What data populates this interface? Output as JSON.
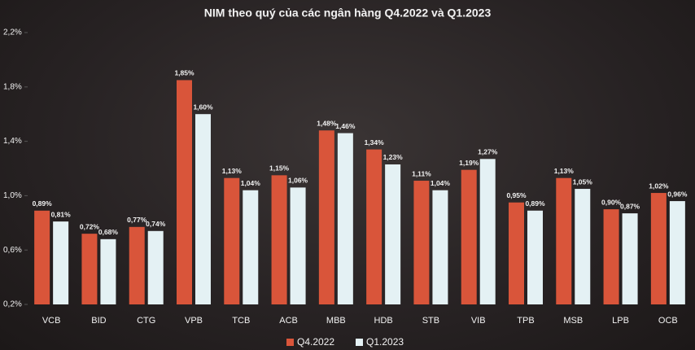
{
  "chart_data": {
    "type": "bar",
    "title": "NIM theo quý của các ngân hàng Q4.2022 và Q1.2023",
    "categories": [
      "VCB",
      "BID",
      "CTG",
      "VPB",
      "TCB",
      "ACB",
      "MBB",
      "HDB",
      "STB",
      "VIB",
      "TPB",
      "MSB",
      "LPB",
      "OCB"
    ],
    "series": [
      {
        "name": "Q4.2022",
        "color": "#d9553a",
        "values": [
          0.89,
          0.72,
          0.77,
          1.85,
          1.13,
          1.15,
          1.48,
          1.34,
          1.11,
          1.19,
          0.95,
          1.13,
          0.9,
          1.02
        ],
        "value_labels": [
          "0,89%",
          "0,72%",
          "0,77%",
          "1,85%",
          "1,13%",
          "1,15%",
          "1,48%",
          "1,34%",
          "1,11%",
          "1,19%",
          "0,95%",
          "1,13%",
          "0,90%",
          "1,02%"
        ]
      },
      {
        "name": "Q1.2023",
        "color": "#e4f1f4",
        "values": [
          0.81,
          0.68,
          0.74,
          1.6,
          1.04,
          1.06,
          1.46,
          1.23,
          1.04,
          1.27,
          0.89,
          1.05,
          0.87,
          0.96
        ],
        "value_labels": [
          "0,81%",
          "0,68%",
          "0,74%",
          "1,60%",
          "1,04%",
          "1,06%",
          "1,46%",
          "1,23%",
          "1,04%",
          "1,27%",
          "0,89%",
          "1,05%",
          "0,87%",
          "0,96%"
        ]
      }
    ],
    "ylim": [
      0.2,
      2.2
    ],
    "yticks": [
      {
        "value": 0.2,
        "label": "0,2%"
      },
      {
        "value": 0.6,
        "label": "0,6%"
      },
      {
        "value": 1.0,
        "label": "1,0%"
      },
      {
        "value": 1.4,
        "label": "1,4%"
      },
      {
        "value": 1.8,
        "label": "1,8%"
      },
      {
        "value": 2.2,
        "label": "2,2%"
      }
    ],
    "grid": false
  }
}
